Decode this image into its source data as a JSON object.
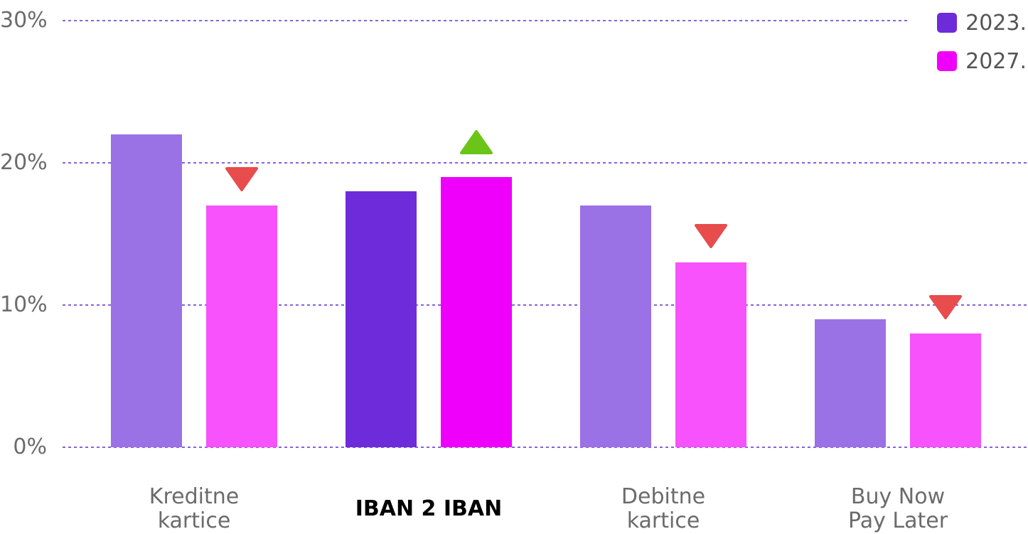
{
  "chart_data": {
    "type": "bar",
    "categories": [
      "Kreditne\nkartice",
      "IBAN 2 IBAN",
      "Debitne\nkartice",
      "Buy Now\nPay Later"
    ],
    "highlighted_category": "IBAN 2 IBAN",
    "series": [
      {
        "name": "2023.",
        "values": [
          22,
          18,
          17,
          9
        ]
      },
      {
        "name": "2027.",
        "values": [
          17,
          19,
          13,
          8
        ]
      }
    ],
    "change_indicators": [
      "down",
      "up",
      "down",
      "down"
    ],
    "yticks": [
      "0%",
      "10%",
      "20%",
      "30%"
    ],
    "ylim": [
      0,
      30
    ],
    "grid": true,
    "legend": "top-right",
    "colors": {
      "series_2023": "#9b71e6",
      "series_2023_highlight": "#6e2bd9",
      "series_2027": "#f752fb",
      "series_2027_highlight": "#ee00fb",
      "legend_2023": "#6e2bd9",
      "legend_2027": "#ee00fb",
      "grid": "#5b2fd9",
      "down_arrow": "#e84c4c",
      "up_arrow": "#6ac518"
    }
  }
}
